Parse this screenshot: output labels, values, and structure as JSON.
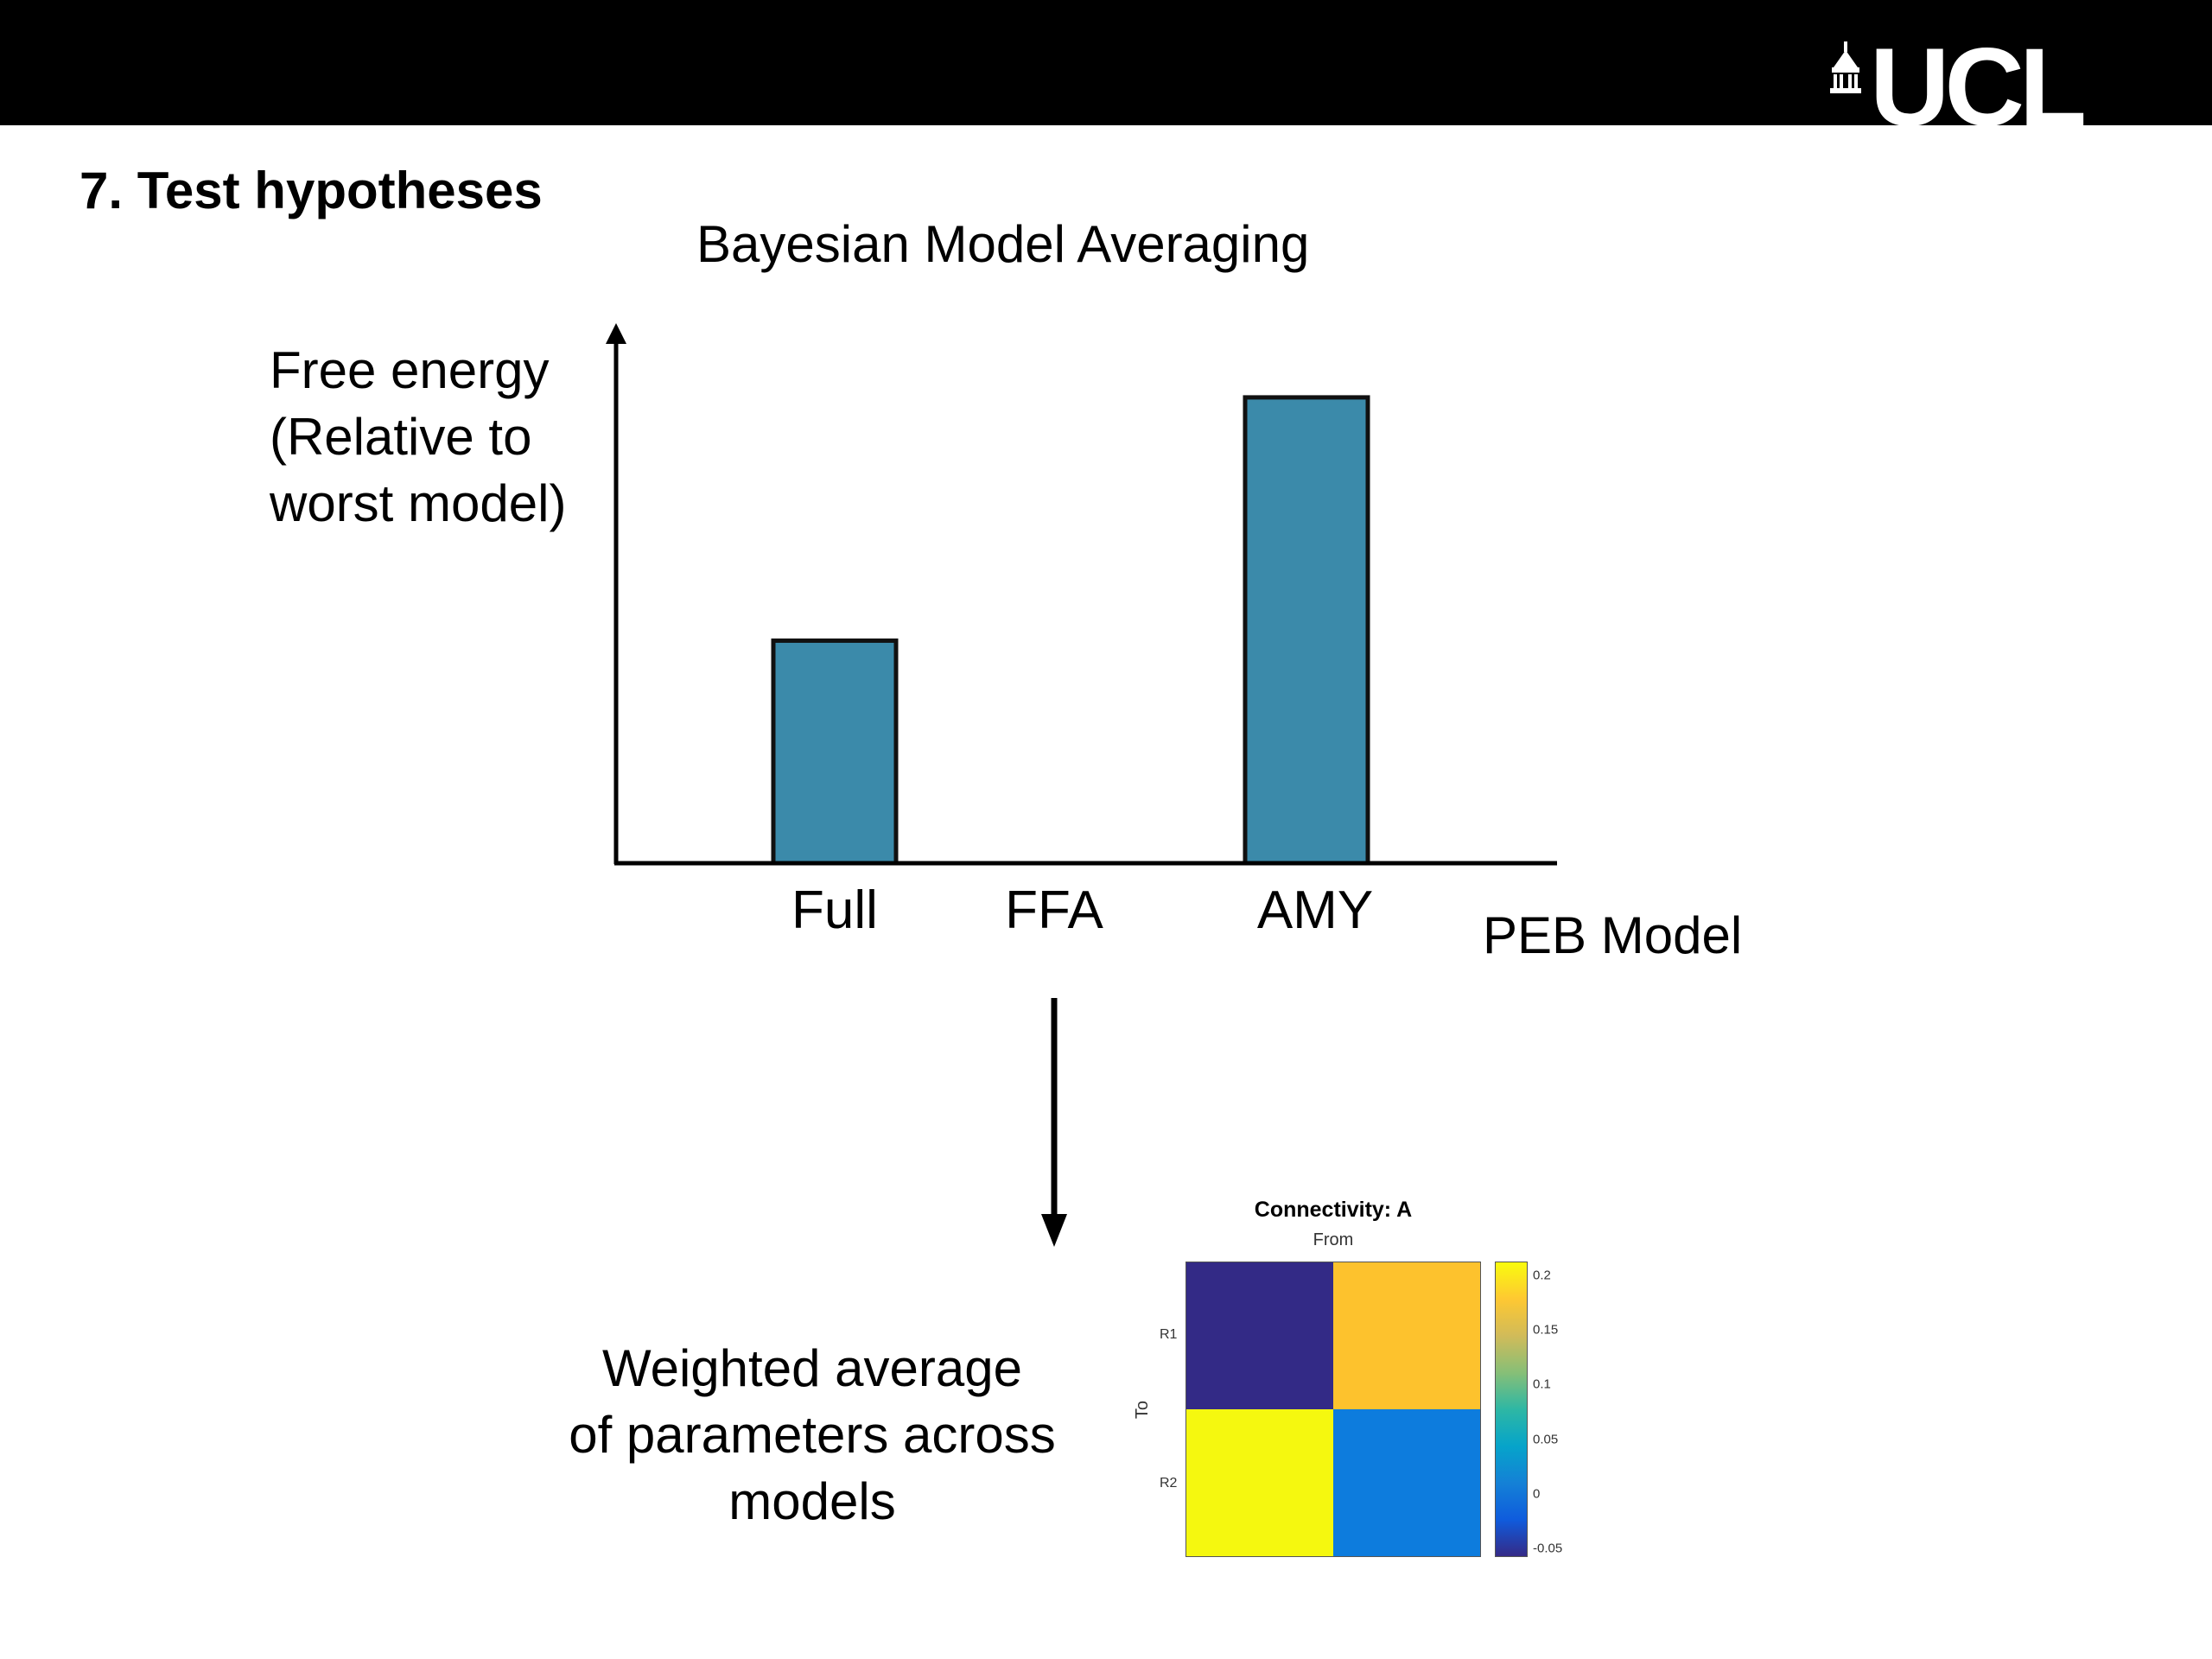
{
  "header": {
    "logo_text": "UCL",
    "bar_color": "#000000"
  },
  "slide_title": "7. Test hypotheses",
  "chart_data": [
    {
      "type": "bar",
      "title": "Bayesian Model Averaging",
      "ylabel_lines": [
        "Free energy",
        "(Relative to",
        "worst model)"
      ],
      "xlabel": "PEB Model",
      "categories": [
        "Full",
        "FFA",
        "AMY"
      ],
      "values": [
        0.43,
        0,
        0.9
      ],
      "ylim": [
        0,
        1
      ],
      "bar_color": "#3b8aaa",
      "grid": false
    },
    {
      "type": "heatmap",
      "title": "Connectivity: A",
      "xlabel": "From",
      "ylabel": "To",
      "row_labels": [
        "R1",
        "R2"
      ],
      "values": [
        [
          -0.05,
          0.18
        ],
        [
          0.2,
          0.03
        ]
      ],
      "colorbar_ticks": [
        "0.2",
        "0.15",
        "0.1",
        "0.05",
        "0",
        "-0.05"
      ],
      "colorbar_range": [
        -0.05,
        0.2
      ],
      "cell_colors": [
        [
          "#332a86",
          "#fdc22d"
        ],
        [
          "#f5f80f",
          "#0d7cdd"
        ]
      ]
    }
  ],
  "caption_lines": [
    "Weighted average",
    "of parameters across",
    "models"
  ]
}
